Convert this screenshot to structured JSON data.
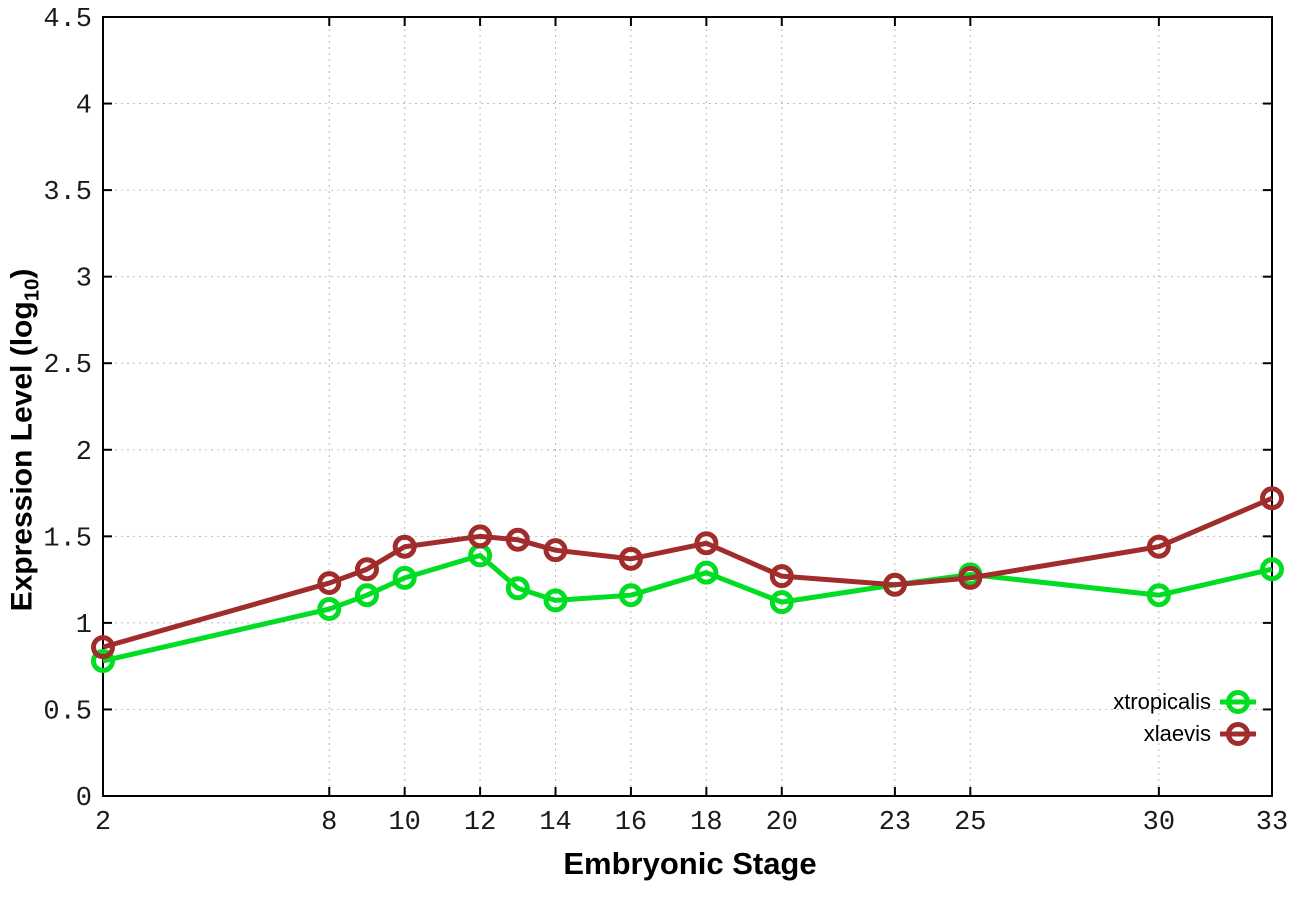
{
  "chart_data": {
    "type": "line",
    "title": "",
    "xlabel": "Embryonic Stage",
    "ylabel": "Expression Level (log10)",
    "ylabel_parts": {
      "prefix": "Expression Level (log",
      "sub": "10",
      "suffix": ")"
    },
    "xlim": [
      2,
      33
    ],
    "ylim": [
      0,
      4.5
    ],
    "grid": true,
    "legend_position": "right-middle-inside",
    "x_tick_labels": [
      "2",
      "8",
      "10",
      "12",
      "14",
      "16",
      "18",
      "20",
      "23",
      "25",
      "30",
      "33"
    ],
    "x_tick_values": [
      2,
      8,
      10,
      12,
      14,
      16,
      18,
      20,
      23,
      25,
      30,
      33
    ],
    "y_tick_labels": [
      "0",
      "0.5",
      "1",
      "1.5",
      "2",
      "2.5",
      "3",
      "3.5",
      "4",
      "4.5"
    ],
    "y_tick_values": [
      0,
      0.5,
      1,
      1.5,
      2,
      2.5,
      3,
      3.5,
      4,
      4.5
    ],
    "x": [
      2,
      8,
      9,
      10,
      12,
      13,
      14,
      16,
      18,
      20,
      23,
      25,
      30,
      33
    ],
    "series": [
      {
        "name": "xtropicalis",
        "color": "#00dd22",
        "values": [
          0.78,
          1.08,
          1.16,
          1.26,
          1.39,
          1.2,
          1.13,
          1.16,
          1.29,
          1.12,
          1.22,
          1.28,
          1.16,
          1.31
        ]
      },
      {
        "name": "xlaevis",
        "color": "#a02c2c",
        "values": [
          0.86,
          1.23,
          1.31,
          1.44,
          1.5,
          1.48,
          1.42,
          1.37,
          1.46,
          1.27,
          1.22,
          1.26,
          1.44,
          1.72
        ]
      }
    ],
    "style": {
      "grid_color": "#bcbcbc",
      "border_color": "#000000",
      "background": "#ffffff",
      "line_width": 5,
      "marker_radius": 9.5,
      "marker_stroke": 5
    }
  },
  "legend": {
    "items": [
      {
        "label": "xtropicalis"
      },
      {
        "label": "xlaevis"
      }
    ]
  }
}
